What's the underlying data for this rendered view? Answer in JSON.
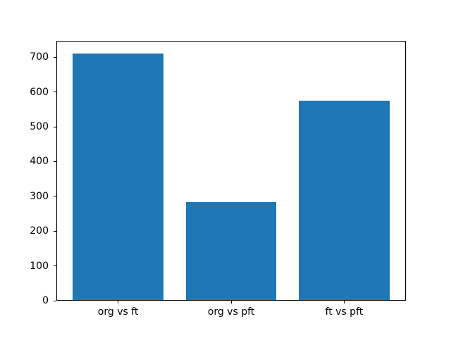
{
  "chart_data": {
    "type": "bar",
    "title": "",
    "xlabel": "",
    "ylabel": "",
    "categories": [
      "org vs ft",
      "org vs pft",
      "ft vs pft"
    ],
    "values": [
      712,
      284,
      575
    ],
    "ylim": [
      0,
      747.6
    ],
    "yticks": [
      0,
      100,
      200,
      300,
      400,
      500,
      600,
      700
    ],
    "grid": false,
    "legend": null,
    "bar_color": "#1f77b4",
    "axis_color": "#000000",
    "text_color": "#000000",
    "background_color": "#ffffff"
  }
}
